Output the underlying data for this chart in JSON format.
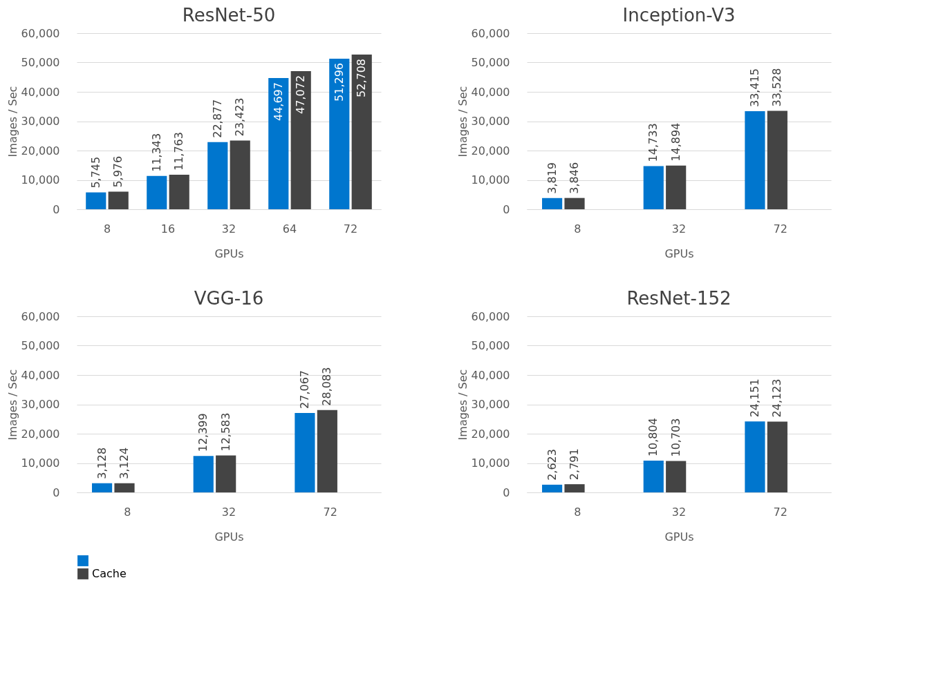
{
  "chart_data": [
    {
      "type": "bar",
      "title": "ResNet-50",
      "xlabel": "GPUs",
      "ylabel": "Images / Sec",
      "categories": [
        "8",
        "16",
        "32",
        "64",
        "72"
      ],
      "ylim": [
        0,
        60000
      ],
      "yticks": [
        0,
        {
          "value": 10000,
          "label": "10,000"
        },
        {
          "value": 20000,
          "label": "20,000"
        },
        {
          "value": 30000,
          "label": "30,000"
        },
        {
          "value": 40000,
          "label": "40,000"
        },
        {
          "value": 50000,
          "label": "50,000"
        },
        {
          "value": 60000,
          "label": "60,000"
        }
      ],
      "grid": "y",
      "legend": "bottom left",
      "series": [
        {
          "color": "#0076ce",
          "values": [
            5745,
            11343,
            22877,
            44697,
            51296
          ],
          "value_labels": [
            "5,745",
            "11,343",
            "22,877",
            "44,697",
            "51,296"
          ]
        },
        {
          "name": "Cache",
          "color": "#444444",
          "values": [
            5976,
            11763,
            23423,
            47072,
            52708
          ],
          "value_labels": [
            "5,976",
            "11,763",
            "23,423",
            "47,072",
            "52,708"
          ]
        }
      ]
    },
    {
      "type": "bar",
      "title": "Inception-V3",
      "xlabel": "GPUs",
      "ylabel": "Images / Sec",
      "categories": [
        "8",
        "32",
        "72"
      ],
      "ylim": [
        0,
        60000
      ],
      "yticks": [
        0,
        {
          "value": 10000,
          "label": "10,000"
        },
        {
          "value": 20000,
          "label": "20,000"
        },
        {
          "value": 30000,
          "label": "30,000"
        },
        {
          "value": 40000,
          "label": "40,000"
        },
        {
          "value": 50000,
          "label": "50,000"
        },
        {
          "value": 60000,
          "label": "60,000"
        }
      ],
      "grid": "y",
      "legend": "bottom left",
      "series": [
        {
          "color": "#0076ce",
          "values": [
            3819,
            14733,
            33415
          ],
          "value_labels": [
            "3,819",
            "14,733",
            "33,415"
          ]
        },
        {
          "name": "Cache",
          "color": "#444444",
          "values": [
            3846,
            14894,
            33528
          ],
          "value_labels": [
            "3,846",
            "14,894",
            "33,528"
          ]
        }
      ]
    },
    {
      "type": "bar",
      "title": "VGG-16",
      "xlabel": "GPUs",
      "ylabel": "Images / Sec",
      "categories": [
        "8",
        "32",
        "72"
      ],
      "ylim": [
        0,
        60000
      ],
      "yticks": [
        0,
        {
          "value": 10000,
          "label": "10,000"
        },
        {
          "value": 20000,
          "label": "20,000"
        },
        {
          "value": 30000,
          "label": "30,000"
        },
        {
          "value": 40000,
          "label": "40,000"
        },
        {
          "value": 50000,
          "label": "50,000"
        },
        {
          "value": 60000,
          "label": "60,000"
        }
      ],
      "grid": "y",
      "legend": "bottom left",
      "series": [
        {
          "color": "#0076ce",
          "values": [
            3128,
            12399,
            27067
          ],
          "value_labels": [
            "3,128",
            "12,399",
            "27,067"
          ]
        },
        {
          "name": "Cache",
          "color": "#444444",
          "values": [
            3124,
            12583,
            28083
          ],
          "value_labels": [
            "3,124",
            "12,583",
            "28,083"
          ]
        }
      ]
    },
    {
      "type": "bar",
      "title": "ResNet-152",
      "xlabel": "GPUs",
      "ylabel": "Images / Sec",
      "categories": [
        "8",
        "32",
        "72"
      ],
      "ylim": [
        0,
        60000
      ],
      "yticks": [
        0,
        {
          "value": 10000,
          "label": "10,000"
        },
        {
          "value": 20000,
          "label": "20,000"
        },
        {
          "value": 30000,
          "label": "30,000"
        },
        {
          "value": 40000,
          "label": "40,000"
        },
        {
          "value": 50000,
          "label": "50,000"
        },
        {
          "value": 60000,
          "label": "60,000"
        }
      ],
      "grid": "y",
      "legend": "bottom left",
      "series": [
        {
          "color": "#0076ce",
          "values": [
            2623,
            10804,
            24151
          ],
          "value_labels": [
            "2,623",
            "10,804",
            "24,151"
          ]
        },
        {
          "name": "Cache",
          "color": "#444444",
          "values": [
            2791,
            10703,
            24123
          ],
          "value_labels": [
            "2,791",
            "10,703",
            "24,123"
          ]
        }
      ]
    }
  ]
}
